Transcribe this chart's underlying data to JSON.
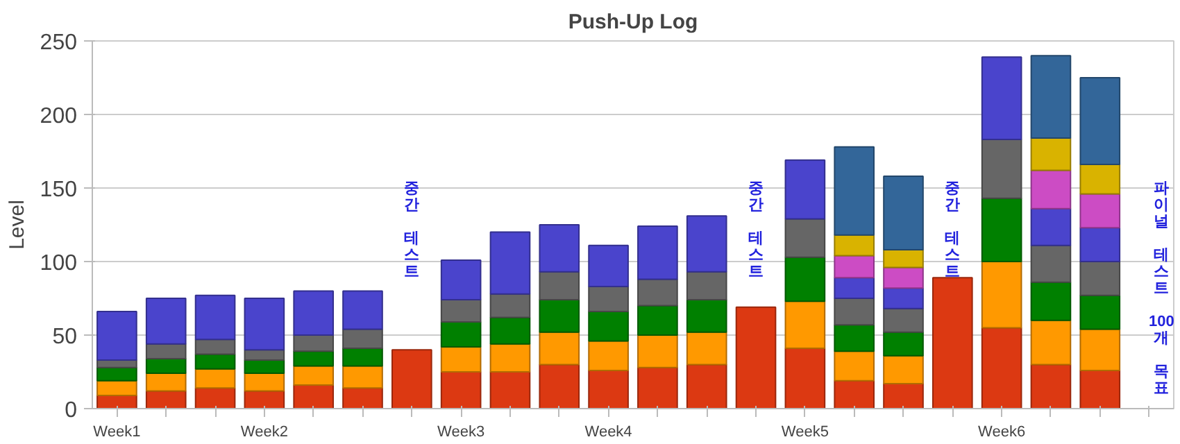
{
  "chart_data": {
    "type": "bar",
    "stacked": true,
    "title": "Push-Up Log",
    "ylabel": "Level",
    "categories": [
      "Week1",
      null,
      null,
      "Week2",
      null,
      null,
      null,
      "Week3",
      null,
      null,
      "Week4",
      null,
      null,
      null,
      "Week5",
      null,
      null,
      null,
      "Week6",
      null,
      null,
      null
    ],
    "series": [
      {
        "color": "#dc3912",
        "values": [
          9,
          12,
          14,
          12,
          16,
          14,
          40,
          25,
          25,
          30,
          26,
          28,
          30,
          69,
          41,
          19,
          17,
          89,
          55,
          30,
          26,
          null
        ]
      },
      {
        "color": "#ff9900",
        "values": [
          10,
          12,
          13,
          12,
          13,
          15,
          null,
          17,
          19,
          22,
          20,
          22,
          22,
          null,
          32,
          20,
          19,
          null,
          45,
          30,
          28,
          null
        ]
      },
      {
        "color": "#008000",
        "values": [
          9,
          10,
          10,
          9,
          10,
          12,
          null,
          17,
          18,
          22,
          20,
          20,
          22,
          null,
          30,
          18,
          16,
          null,
          43,
          26,
          23,
          null
        ]
      },
      {
        "color": "#666666",
        "values": [
          5,
          10,
          10,
          7,
          11,
          13,
          null,
          15,
          16,
          19,
          17,
          18,
          19,
          null,
          26,
          18,
          16,
          null,
          40,
          25,
          23,
          null
        ]
      },
      {
        "color": "#4a44cc",
        "values": [
          33,
          31,
          30,
          35,
          30,
          26,
          null,
          27,
          42,
          32,
          28,
          36,
          38,
          null,
          40,
          14,
          14,
          null,
          56,
          25,
          23,
          null
        ]
      },
      {
        "color": "#cc4cc4",
        "values": [
          null,
          null,
          null,
          null,
          null,
          null,
          null,
          null,
          null,
          null,
          null,
          null,
          null,
          null,
          null,
          15,
          14,
          null,
          null,
          26,
          23,
          null
        ]
      },
      {
        "color": "#d9b300",
        "values": [
          null,
          null,
          null,
          null,
          null,
          null,
          null,
          null,
          null,
          null,
          null,
          null,
          null,
          null,
          null,
          14,
          12,
          null,
          null,
          22,
          20,
          null
        ]
      },
      {
        "color": "#336699",
        "values": [
          null,
          null,
          null,
          null,
          null,
          null,
          null,
          null,
          null,
          null,
          null,
          null,
          null,
          null,
          null,
          60,
          50,
          null,
          null,
          56,
          59,
          null
        ]
      }
    ],
    "ylim": [
      0,
      250
    ],
    "yticks": [
      0,
      50,
      100,
      150,
      200,
      250
    ],
    "grid": "y",
    "annotations": [
      "중간 테스트",
      "중간 테스트",
      "중간 테스트",
      "파이널 테스트 100개 목표"
    ]
  }
}
